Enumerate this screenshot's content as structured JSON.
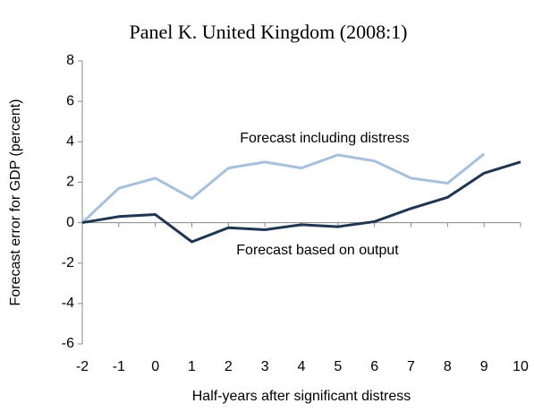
{
  "chart_data": {
    "type": "line",
    "title": "Panel K.  United Kingdom (2008:1)",
    "x_label": "Half-years after significant distress",
    "y_label": "Forecast error for GDP (percent)",
    "x": [
      -2,
      -1,
      0,
      1,
      2,
      3,
      4,
      5,
      6,
      7,
      8,
      9,
      10
    ],
    "series": [
      {
        "name": "Forecast including distress",
        "color": "#a6c0de",
        "values": [
          0,
          1.7,
          2.2,
          1.2,
          2.7,
          3.0,
          2.7,
          3.35,
          3.05,
          2.2,
          1.95,
          3.4,
          null
        ]
      },
      {
        "name": "Forecast based on output",
        "color": "#1f3552",
        "values": [
          0,
          0.3,
          0.4,
          -0.95,
          -0.25,
          -0.35,
          -0.1,
          -0.2,
          0.05,
          0.7,
          1.25,
          2.45,
          3.0
        ]
      }
    ],
    "xlim": [
      -2,
      10
    ],
    "xticks": [
      -2,
      -1,
      0,
      1,
      2,
      3,
      4,
      5,
      6,
      7,
      8,
      9,
      10
    ],
    "ylim": [
      -6,
      8
    ],
    "yticks": [
      -6,
      -4,
      -2,
      0,
      2,
      4,
      6,
      8
    ]
  }
}
